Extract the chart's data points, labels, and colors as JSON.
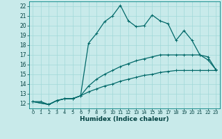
{
  "xlabel": "Humidex (Indice chaleur)",
  "bg_color": "#c8eaea",
  "line_color": "#006868",
  "grid_color": "#a0d8d8",
  "xlim": [
    -0.5,
    23.5
  ],
  "ylim": [
    11.5,
    22.5
  ],
  "xticks": [
    0,
    1,
    2,
    3,
    4,
    5,
    6,
    7,
    8,
    9,
    10,
    11,
    12,
    13,
    14,
    15,
    16,
    17,
    18,
    19,
    20,
    21,
    22,
    23
  ],
  "yticks": [
    12,
    13,
    14,
    15,
    16,
    17,
    18,
    19,
    20,
    21,
    22
  ],
  "line1_x": [
    0,
    1,
    2,
    3,
    4,
    5,
    6,
    7,
    8,
    9,
    10,
    11,
    12,
    13,
    14,
    15,
    16,
    17,
    18,
    19,
    20,
    21,
    22,
    23
  ],
  "line1_y": [
    12.2,
    12.2,
    11.9,
    12.3,
    12.5,
    12.5,
    12.8,
    18.2,
    19.2,
    20.4,
    21.0,
    22.1,
    20.5,
    19.9,
    20.0,
    21.1,
    20.5,
    20.2,
    18.5,
    19.5,
    18.5,
    17.0,
    16.8,
    15.5
  ],
  "line2_x": [
    0,
    2,
    3,
    4,
    5,
    6,
    7,
    8,
    9,
    10,
    11,
    12,
    13,
    14,
    15,
    16,
    17,
    18,
    19,
    20,
    21,
    22,
    23
  ],
  "line2_y": [
    12.2,
    11.9,
    12.3,
    12.5,
    12.5,
    12.8,
    13.8,
    14.5,
    15.0,
    15.4,
    15.8,
    16.1,
    16.4,
    16.6,
    16.8,
    17.0,
    17.0,
    17.0,
    17.0,
    17.0,
    17.0,
    16.5,
    15.5
  ],
  "line3_x": [
    0,
    2,
    3,
    4,
    5,
    6,
    7,
    8,
    9,
    10,
    11,
    12,
    13,
    14,
    15,
    16,
    17,
    18,
    19,
    20,
    21,
    22,
    23
  ],
  "line3_y": [
    12.2,
    11.9,
    12.3,
    12.5,
    12.5,
    12.8,
    13.2,
    13.5,
    13.8,
    14.0,
    14.3,
    14.5,
    14.7,
    14.9,
    15.0,
    15.2,
    15.3,
    15.4,
    15.4,
    15.4,
    15.4,
    15.4,
    15.4
  ]
}
